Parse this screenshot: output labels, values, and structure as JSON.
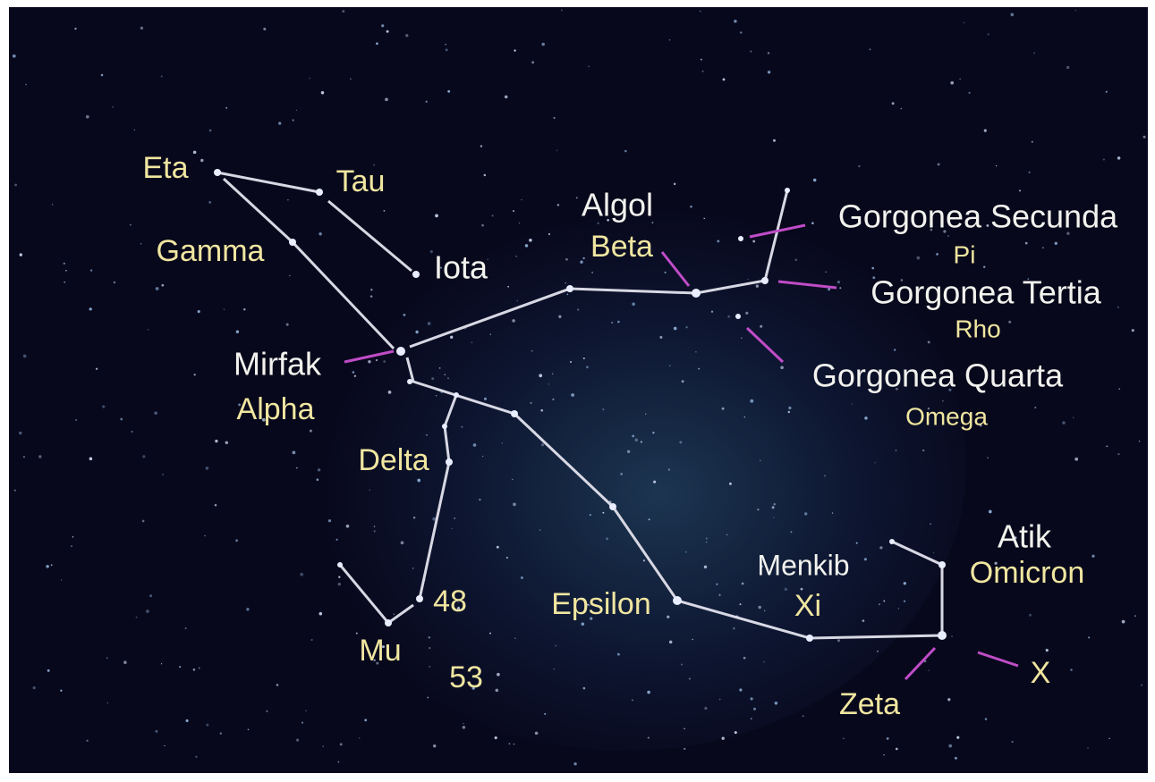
{
  "labels": [
    "Eta",
    "Tau",
    "Gamma",
    "Iota",
    "Algol",
    "Beta",
    "Gorgonea Secunda",
    "Pi",
    "Gorgonea Tertia",
    "Rho",
    "Mirfak",
    "Alpha",
    "Gorgonea Quarta",
    "Omega",
    "Delta",
    "Menkib",
    "Xi",
    "Atik",
    "Omicron",
    "48",
    "Epsilon",
    "Mu",
    "53",
    "Zeta",
    "X"
  ]
}
